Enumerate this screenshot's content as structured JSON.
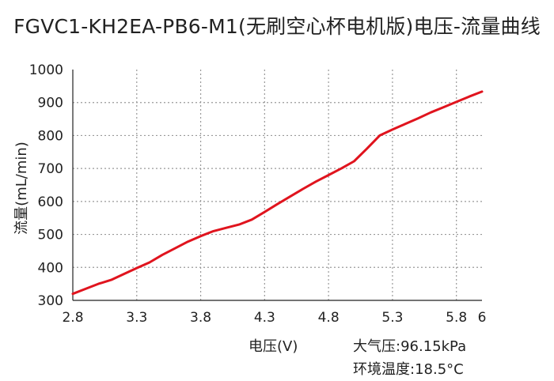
{
  "chart_data": {
    "type": "line",
    "title": "FGVC1-KH2EA-PB6-M1(无刷空心杯电机版)电压-流量曲线",
    "xlabel": "电压(V)",
    "ylabel": "流量(mL/min)",
    "xlim": [
      2.8,
      6
    ],
    "ylim": [
      300,
      1000
    ],
    "xticks": [
      "2.8",
      "3.3",
      "3.8",
      "4.3",
      "4.8",
      "5.3",
      "5.8",
      "6"
    ],
    "yticks": [
      "300",
      "400",
      "500",
      "600",
      "700",
      "800",
      "900",
      "1000"
    ],
    "grid": true,
    "series": [
      {
        "color": "#e0141e",
        "x": [
          2.8,
          2.9,
          3.0,
          3.1,
          3.2,
          3.3,
          3.4,
          3.5,
          3.6,
          3.7,
          3.8,
          3.9,
          4.0,
          4.1,
          4.2,
          4.3,
          4.4,
          4.5,
          4.6,
          4.7,
          4.8,
          4.9,
          5.0,
          5.1,
          5.2,
          5.3,
          5.4,
          5.5,
          5.6,
          5.7,
          5.8,
          5.9,
          6.0
        ],
        "y": [
          320,
          335,
          350,
          362,
          380,
          398,
          415,
          438,
          458,
          478,
          495,
          510,
          520,
          530,
          545,
          568,
          592,
          615,
          638,
          660,
          680,
          700,
          722,
          760,
          800,
          818,
          835,
          852,
          870,
          886,
          902,
          918,
          933
        ]
      }
    ]
  },
  "annotations": {
    "pressure": "大气压:96.15kPa",
    "temperature": "环境温度:18.5°C"
  }
}
